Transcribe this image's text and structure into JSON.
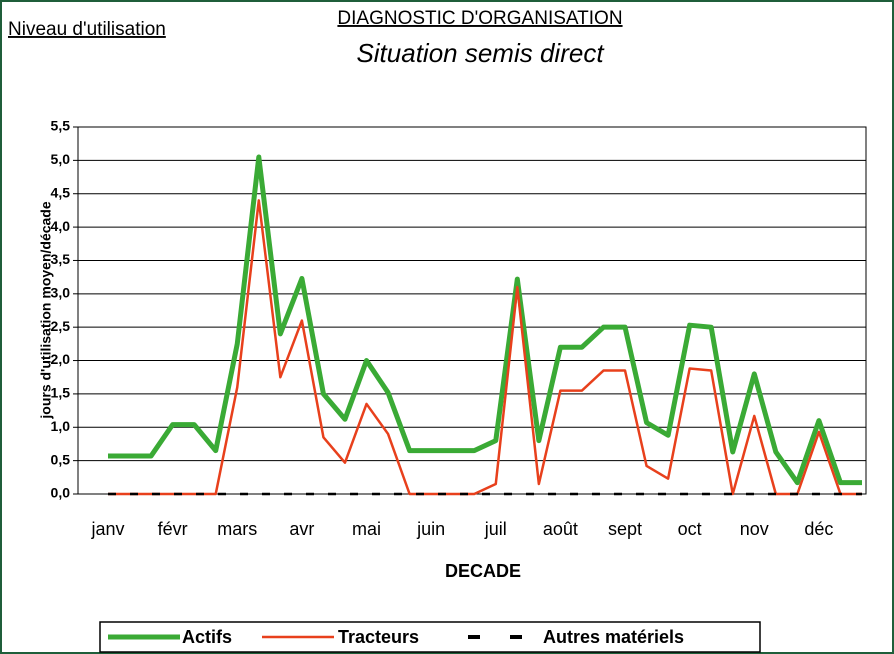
{
  "chart_data": {
    "type": "line",
    "corner_label": "Niveau d'utilisation",
    "title": "DIAGNOSTIC D'ORGANISATION",
    "subtitle": "Situation semis direct",
    "y_label": "jours d'utilisation moyen/décade",
    "x_label": "DECADE",
    "categories": [
      "janv",
      null,
      null,
      "févr",
      null,
      null,
      "mars",
      null,
      null,
      "avr",
      null,
      null,
      "mai",
      null,
      null,
      "juin",
      null,
      null,
      "juil",
      null,
      null,
      "août",
      null,
      null,
      "sept",
      null,
      null,
      "oct",
      null,
      null,
      "nov",
      null,
      null,
      "déc",
      null,
      null
    ],
    "series": [
      {
        "name": "Actifs",
        "color": "#3aaa35",
        "width": 5,
        "dashed": false,
        "values": [
          0.57,
          0.57,
          0.57,
          1.04,
          1.04,
          0.65,
          2.25,
          5.05,
          2.4,
          3.23,
          1.5,
          1.12,
          2.0,
          1.52,
          0.65,
          0.65,
          0.65,
          0.65,
          0.8,
          3.22,
          0.8,
          2.2,
          2.2,
          2.5,
          2.5,
          1.07,
          0.88,
          2.53,
          2.5,
          0.63,
          1.8,
          0.63,
          0.17,
          1.1,
          0.17,
          0.17
        ]
      },
      {
        "name": "Tracteurs",
        "color": "#e8401c",
        "width": 2.5,
        "dashed": false,
        "values": [
          0,
          0,
          0,
          0,
          0,
          0,
          1.6,
          4.4,
          1.75,
          2.6,
          0.85,
          0.47,
          1.35,
          0.9,
          0,
          0,
          0,
          0,
          0.15,
          3.1,
          0.15,
          1.55,
          1.55,
          1.85,
          1.85,
          0.42,
          0.23,
          1.88,
          1.85,
          0,
          1.17,
          0,
          0,
          0.93,
          0,
          0
        ]
      },
      {
        "name": "Autres matériels",
        "color": "#000000",
        "width": 2.5,
        "dashed": true,
        "values": [
          0,
          0,
          0,
          0,
          0,
          0,
          0,
          0,
          0,
          0,
          0,
          0,
          0,
          0,
          0,
          0,
          0,
          0,
          0,
          0,
          0,
          0,
          0,
          0,
          0,
          0,
          0,
          0,
          0,
          0,
          0,
          0,
          0,
          0,
          0,
          0
        ]
      }
    ],
    "ylim": [
      0,
      5.5
    ],
    "yticks": [
      {
        "value": 0,
        "label": "0,0"
      },
      {
        "value": 0.5,
        "label": "0,5"
      },
      {
        "value": 1,
        "label": "1,0"
      },
      {
        "value": 1.5,
        "label": "1,5"
      },
      {
        "value": 2,
        "label": "2,0"
      },
      {
        "value": 2.5,
        "label": "2,5"
      },
      {
        "value": 3,
        "label": "3,0"
      },
      {
        "value": 3.5,
        "label": "3,5"
      },
      {
        "value": 4,
        "label": "4,0"
      },
      {
        "value": 4.5,
        "label": "4,5"
      },
      {
        "value": 5,
        "label": "5,0"
      },
      {
        "value": 5.5,
        "label": "5,5"
      }
    ],
    "grid": true,
    "legend": "bottom"
  }
}
